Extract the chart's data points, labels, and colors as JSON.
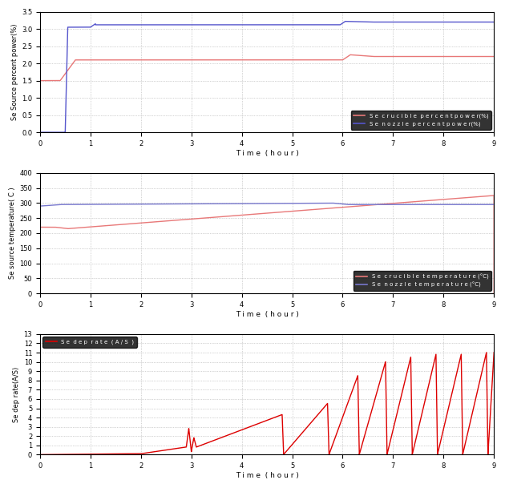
{
  "fig_width": 6.3,
  "fig_height": 6.09,
  "dpi": 100,
  "background": "#ffffff",
  "plot_bg": "#ffffff",
  "grid_color": "#aaaaaa",
  "grid_style": "dotted",
  "plot1": {
    "ylabel": "Se Source percent power(%)",
    "xlabel": "T i m e  ( h o u r )",
    "ylim": [
      0,
      3.5
    ],
    "xlim": [
      0,
      9
    ],
    "yticks": [
      0,
      0.5,
      1.0,
      1.5,
      2.0,
      2.5,
      3.0,
      3.5
    ],
    "xticks": [
      0,
      1,
      2,
      3,
      4,
      5,
      6,
      7,
      8,
      9
    ],
    "legend1": "S e  c r u c i b l e  p e r c e n t p o w e r(%)",
    "legend2": "S e  n o z z l e  p e r c e n t p o w e r(%)",
    "color_red": "#e87878",
    "color_blue": "#5555cc"
  },
  "plot2": {
    "ylabel": "Se source temperature( C )",
    "xlabel": "T i m e  ( h o u r )",
    "ylim": [
      0,
      400
    ],
    "xlim": [
      0,
      9
    ],
    "yticks": [
      0,
      50,
      100,
      150,
      200,
      250,
      300,
      350,
      400
    ],
    "xticks": [
      0,
      1,
      2,
      3,
      4,
      5,
      6,
      7,
      8,
      9
    ],
    "legend1": "S e  c r u c i b l e  t e m p e r a t u r e (°C)",
    "legend2": "S e  n o z z l e  t e m p e r a t u r e (°C)",
    "color_red": "#e87878",
    "color_blue": "#7777cc"
  },
  "plot3": {
    "ylabel": "Se dep rate(A/S)",
    "xlabel": "T i m e  ( h o u r )",
    "ylim": [
      0,
      13
    ],
    "xlim": [
      0,
      9
    ],
    "yticks": [
      0,
      1,
      2,
      3,
      4,
      5,
      6,
      7,
      8,
      9,
      10,
      11,
      12,
      13
    ],
    "xticks": [
      0,
      1,
      2,
      3,
      4,
      5,
      6,
      7,
      8,
      9
    ],
    "legend1": "S e  d e p  r a t e  ( A / S  )",
    "color_red": "#dd0000"
  }
}
